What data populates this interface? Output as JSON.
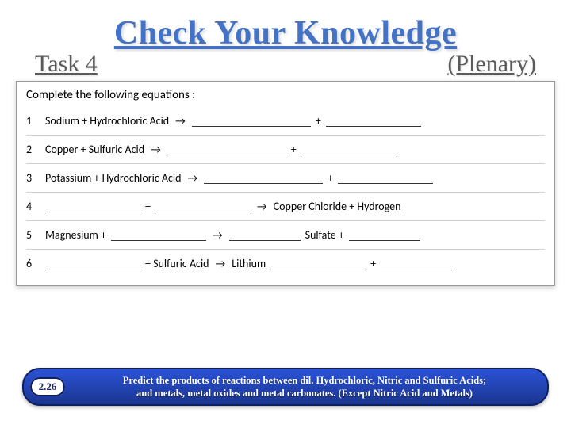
{
  "title": "Check Your Knowledge",
  "subheader": {
    "left": "Task 4",
    "right": "(Plenary)"
  },
  "worksheet": {
    "header": "Complete the following equations :",
    "rows": [
      {
        "num": "1",
        "parts": [
          "Sodium + Hydrochloric Acid",
          "ARROW",
          "BLANK_LG",
          "+",
          "BLANK_MED"
        ]
      },
      {
        "num": "2",
        "parts": [
          "Copper + Sulfuric Acid",
          "ARROW",
          "BLANK_LG",
          "+",
          "BLANK_MED"
        ]
      },
      {
        "num": "3",
        "parts": [
          "Potassium + Hydrochloric Acid",
          "ARROW",
          "BLANK_LG",
          "+",
          "BLANK_MED"
        ]
      },
      {
        "num": "4",
        "parts": [
          "BLANK_MED",
          "+",
          "BLANK_MED",
          "ARROW",
          "Copper Chloride + Hydrogen"
        ]
      },
      {
        "num": "5",
        "parts": [
          "Magnesium +",
          "BLANK_MED",
          "ARROW",
          "BLANK_SM",
          "Sulfate +",
          "BLANK_SM"
        ]
      },
      {
        "num": "6",
        "parts": [
          "BLANK_MED",
          "+ Sulfuric Acid",
          "ARROW",
          "Lithium",
          "BLANK_MED",
          "+",
          "BLANK_SM"
        ]
      }
    ]
  },
  "footer": {
    "num": "2.26",
    "text1": "Predict the products of reactions between dil. Hydrochloric, Nitric and Sulfuric Acids;",
    "text2": "and metals, metal oxides and metal carbonates. (Except Nitric Acid and Metals)"
  },
  "colors": {
    "title": "#4472c4",
    "subheader": "#5a5a5a",
    "pill_bg_top": "#2b52d6",
    "pill_bg_bottom": "#1a3590",
    "pill_border": "#0e1f5e"
  }
}
